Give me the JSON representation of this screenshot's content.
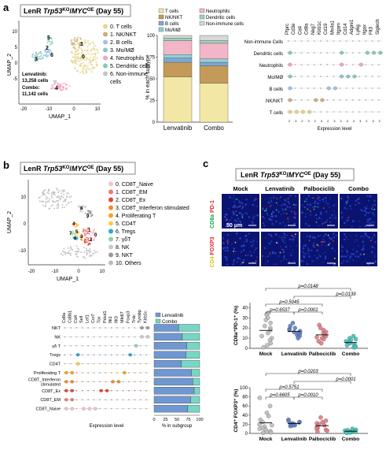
{
  "panel_a": {
    "label": "a",
    "title_prefix": "LenR ",
    "title_gene1": "Trp53",
    "title_sup1": "KO",
    "title_sep": "/",
    "title_gene2": "MYC",
    "title_sup2": "OE",
    "title_suffix": " (Day 55)",
    "umap_x_label": "UMAP_1",
    "umap_y_label": "UMAP_2",
    "x_ticks": [
      "-20",
      "-10",
      "0",
      "10"
    ],
    "y_ticks": [
      "10",
      "5",
      "0",
      "-5"
    ],
    "stats": [
      "Lenvatinib:",
      "13,258 cells",
      "Combo:",
      "11,142 cells"
    ],
    "clusters": [
      {
        "label": "0. T cells",
        "color": "#e8d38a"
      },
      {
        "label": "1. NK/NKT",
        "color": "#c9b07a"
      },
      {
        "label": "2. B cells",
        "color": "#9fc3e6"
      },
      {
        "label": "3. Mo/MØ",
        "color": "#8cc6c8"
      },
      {
        "label": "4. Neutrophils",
        "color": "#f2a5bd"
      },
      {
        "label": "5. Dendritic cells",
        "color": "#7fcfb4"
      },
      {
        "label": "6. Non-immune",
        "color": "#c4c4c4"
      },
      {
        "label": "cells",
        "color": ""
      }
    ],
    "bar_legend": [
      {
        "label": "T cells",
        "color": "#f3e7a6"
      },
      {
        "label": "NK/NKT",
        "color": "#c39a59"
      },
      {
        "label": "B cells",
        "color": "#7fa6d6"
      },
      {
        "label": "Mo/MØ",
        "color": "#8fd0d4"
      },
      {
        "label": "Neutrophils",
        "color": "#f3b6c8"
      },
      {
        "label": "Dendritic cells",
        "color": "#9bd5b9"
      },
      {
        "label": "Non-immune cells",
        "color": "#d8d8d8"
      }
    ],
    "bar_ylabel": "% in each subtype",
    "bar_yticks": [
      "100",
      "75",
      "50",
      "25",
      "0"
    ],
    "bar_categories": [
      "Lenvatinib",
      "Combo"
    ],
    "violin_genes": [
      "Ptprc",
      "Cd3e",
      "Cd4",
      "Cd8a",
      "Nkg7",
      "Klrb1c",
      "Cd19",
      "Ms4a1",
      "Itgam",
      "Cd14",
      "Adgre1",
      "Ly6g",
      "Itgax",
      "Flt3",
      "Siglech"
    ],
    "violin_rows": [
      "Non-immune Cells",
      "Dendritic cells",
      "Neutrophils",
      "Mo/MØ",
      "B cells",
      "NK/NKT",
      "T cells"
    ],
    "violin_xlabel": "Expression level"
  },
  "panel_b": {
    "label": "b",
    "title_prefix": "LenR ",
    "title_gene1": "Trp53",
    "title_sup1": "KO",
    "title_sep": "/",
    "title_gene2": "MYC",
    "title_sup2": "OE",
    "title_suffix": " (Day 55)",
    "umap_x_label": "UMAP_1",
    "umap_y_label": "UMAP_2",
    "x_ticks": [
      "-20",
      "-10",
      "0",
      "10"
    ],
    "y_ticks": [
      "10",
      "0",
      "-10"
    ],
    "clusters": [
      {
        "label": "0.  CD8T_Naive",
        "color": "#f5c2c8"
      },
      {
        "label": "1.  CD8T_EM",
        "color": "#e87a74"
      },
      {
        "label": "2.  CD8T_Ex",
        "color": "#e0473a"
      },
      {
        "label": "3.  CD8T_Interferon stimulated",
        "color": "#f08a2c"
      },
      {
        "label": "4.  Proliferating T",
        "color": "#f5a623"
      },
      {
        "label": "5.  CD4T",
        "color": "#f7cf3b"
      },
      {
        "label": "6.  Tregs",
        "color": "#29a9c6"
      },
      {
        "label": "7.  γδT",
        "color": "#8fd1a8"
      },
      {
        "label": "8.  NK",
        "color": "#c9c9c9"
      },
      {
        "label": "9.  NKT",
        "color": "#9a9a9a"
      },
      {
        "label": "10. Others",
        "color": "#bdbdbd"
      }
    ],
    "violin_genes": [
      "Cd8a",
      "Cd8b1",
      "Cd4",
      "Sell",
      "Lef1",
      "Ccr7",
      "Tox",
      "Pdcd1",
      "Ifit1",
      "Ifit3",
      "Mki67",
      "Foxp3",
      "Trdc",
      "Tyrobp",
      "Klrb1c"
    ],
    "violin_rows": [
      "NKT",
      "NK",
      "γδ T",
      "Tregs",
      "CD4T",
      "Proliferating T",
      "CD8T_Interferon stimulated",
      "CD8T_Ex",
      "CD8T_EM",
      "CD8T_Naive"
    ],
    "violin_xlabel": "Expression level",
    "bar_legend": [
      {
        "label": "Lenvatinib",
        "color": "#6f98d2"
      },
      {
        "label": "Combo",
        "color": "#78d6c4"
      }
    ],
    "bar_xlabel": "% in subgroup",
    "bar_xticks": [
      "0",
      "25",
      "50",
      "75",
      "100"
    ]
  },
  "panel_c": {
    "label": "c",
    "title_prefix": "LenR ",
    "title_gene1": "Trp53",
    "title_sup1": "KO",
    "title_sep": "/",
    "title_gene2": "MYC",
    "title_sup2": "OE",
    "title_suffix": "  (Day 55)",
    "groups": [
      "Mock",
      "Lenvatinib",
      "Palbociclib",
      "Combo"
    ],
    "row1_label_a": "CD8a",
    "row1_label_b": "PD-1",
    "row2_label_a": "CD4",
    "row2_label_b": "FOXP3",
    "scale_bar": "50 μm",
    "plot1_ylabel": "CD8a⁺PD-1⁺ (%)",
    "plot1_yticks": [
      "40",
      "30",
      "20",
      "10",
      "0"
    ],
    "plot1_pvalues": [
      "p=0.0148",
      "p=0.5045",
      "p=0.0139",
      "p=0.6537",
      "p=0.0001"
    ],
    "plot2_ylabel": "CD4⁺ FOXP3⁺ (%)",
    "plot2_yticks": [
      "100",
      "80",
      "60",
      "40",
      "20",
      "0"
    ],
    "plot2_pvalues": [
      "p=0.0203",
      "p=0.5751",
      "p=0.0001",
      "p=0.6605",
      "p=0.0010"
    ],
    "dot_colors": [
      "#bdbdbd",
      "#5b7fc4",
      "#e37b82",
      "#3ec4b8"
    ]
  },
  "chart_data": [
    {
      "type": "bar",
      "title": "",
      "categories": [
        "Lenvatinib",
        "Combo"
      ],
      "ylabel": "% in each subtype",
      "ylim": [
        0,
        100
      ],
      "stacked": true,
      "series": [
        {
          "name": "T cells",
          "values": [
            52,
            45
          ]
        },
        {
          "name": "NK/NKT",
          "values": [
            17,
            20
          ]
        },
        {
          "name": "B cells",
          "values": [
            5,
            4
          ]
        },
        {
          "name": "Mo/MØ",
          "values": [
            4,
            4
          ]
        },
        {
          "name": "Neutrophils",
          "values": [
            16,
            18
          ]
        },
        {
          "name": "Dendritic cells",
          "values": [
            3,
            3
          ]
        },
        {
          "name": "Non-immune cells",
          "values": [
            3,
            6
          ]
        }
      ]
    },
    {
      "type": "bar",
      "title": "",
      "orientation": "horizontal",
      "stacked": true,
      "categories": [
        "NKT",
        "NK",
        "γδ T",
        "Tregs",
        "CD4T",
        "Proliferating T",
        "CD8T_Interferon stimulated",
        "CD8T_Ex",
        "CD8T_EM",
        "CD8T_Naive"
      ],
      "xlabel": "% in subgroup",
      "xlim": [
        0,
        100
      ],
      "series": [
        {
          "name": "Lenvatinib",
          "values": [
            54,
            62,
            72,
            70,
            60,
            82,
            85,
            88,
            80,
            74
          ]
        },
        {
          "name": "Combo",
          "values": [
            46,
            38,
            28,
            30,
            40,
            18,
            15,
            12,
            20,
            26
          ]
        }
      ]
    },
    {
      "type": "scatter",
      "title": "",
      "categories": [
        "Mock",
        "Lenvatinib",
        "Palbociclib",
        "Combo"
      ],
      "ylabel": "CD8a⁺PD-1⁺ (%)",
      "ylim": [
        0,
        45
      ],
      "series": [
        {
          "name": "Mock",
          "values": [
            35,
            33,
            30,
            28,
            25,
            22,
            20,
            18,
            15,
            12,
            10,
            8,
            5,
            3,
            1
          ]
        },
        {
          "name": "Lenvatinib",
          "values": [
            25,
            22,
            20,
            19,
            18,
            17,
            16,
            15,
            15,
            14,
            13,
            12,
            10
          ]
        },
        {
          "name": "Palbociclib",
          "values": [
            23,
            20,
            18,
            16,
            15,
            13,
            12,
            11,
            10,
            9,
            7,
            5
          ]
        },
        {
          "name": "Combo",
          "values": [
            12,
            10,
            9,
            8,
            7,
            6,
            5,
            4,
            3,
            2,
            1,
            1
          ]
        }
      ]
    },
    {
      "type": "scatter",
      "title": "",
      "categories": [
        "Mock",
        "Lenvatinib",
        "Palbociclib",
        "Combo"
      ],
      "ylabel": "CD4⁺ FOXP3⁺ (%)",
      "ylim": [
        0,
        100
      ],
      "series": [
        {
          "name": "Mock",
          "values": [
            78,
            60,
            45,
            38,
            30,
            25,
            20,
            18,
            15,
            12,
            10,
            8,
            5,
            3,
            2,
            1
          ]
        },
        {
          "name": "Lenvatinib",
          "values": [
            30,
            27,
            25,
            24,
            22,
            21,
            20,
            19,
            18,
            17,
            16
          ]
        },
        {
          "name": "Palbociclib",
          "values": [
            35,
            28,
            25,
            22,
            20,
            18,
            15,
            12,
            10,
            8,
            6,
            4
          ]
        },
        {
          "name": "Combo",
          "values": [
            10,
            8,
            7,
            6,
            5,
            4,
            3,
            2,
            2,
            1
          ]
        }
      ]
    }
  ]
}
